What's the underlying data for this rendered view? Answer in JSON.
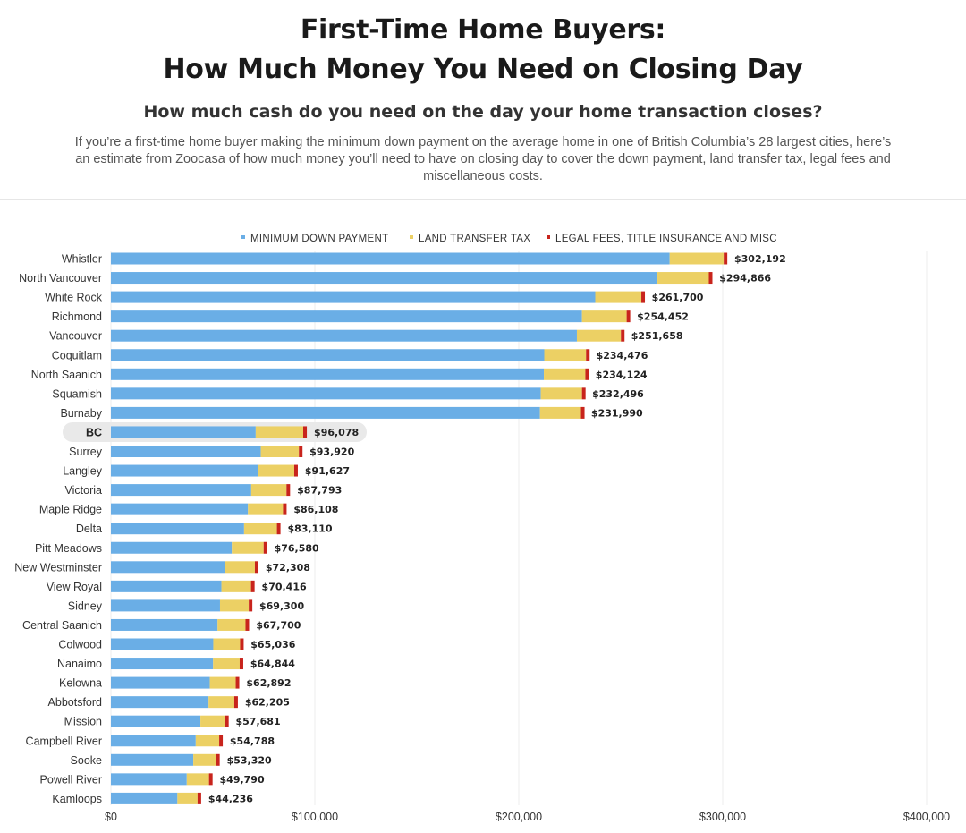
{
  "header": {
    "title_line1": "First-Time Home Buyers:",
    "title_line2": "How Much Money You Need on Closing Day",
    "subtitle": "How much cash do you need on the day your home transaction closes?",
    "description": "If you’re a first-time home buyer making the minimum down payment on the average home in one of British Columbia’s 28 largest cities, here’s an estimate from Zoocasa of how much money you’ll need to have on closing day to cover the down payment, land transfer tax, legal fees and miscellaneous costs."
  },
  "colors": {
    "down_payment": "#6aaee6",
    "land_transfer_tax": "#ecd064",
    "legal_fees": "#c8241c",
    "highlight_bg": "#e9e9e9"
  },
  "chart_data": {
    "type": "bar",
    "orientation": "horizontal",
    "stacked": true,
    "legend_position": "top",
    "grid": true,
    "xlim": [
      0,
      400000
    ],
    "x_ticks": [
      {
        "value": 0,
        "label": "$0"
      },
      {
        "value": 100000,
        "label": "$100,000"
      },
      {
        "value": 200000,
        "label": "$200,000"
      },
      {
        "value": 300000,
        "label": "$300,000"
      },
      {
        "value": 400000,
        "label": "$400,000"
      }
    ],
    "legend": [
      {
        "key": "down_payment",
        "label": "MINIMUM DOWN PAYMENT"
      },
      {
        "key": "land_transfer_tax",
        "label": "LAND TRANSFER TAX"
      },
      {
        "key": "legal_fees",
        "label": "LEGAL FEES, TITLE INSURANCE AND MISC"
      }
    ],
    "highlight_category": "BC",
    "rows": [
      {
        "category": "Whistler",
        "down_payment": 274000,
        "land_transfer_tax": 26500,
        "legal_fees": 1692,
        "total_label": "$302,192"
      },
      {
        "category": "North Vancouver",
        "down_payment": 268000,
        "land_transfer_tax": 25200,
        "legal_fees": 1666,
        "total_label": "$294,866"
      },
      {
        "category": "White Rock",
        "down_payment": 237500,
        "land_transfer_tax": 22600,
        "legal_fees": 1600,
        "total_label": "$261,700"
      },
      {
        "category": "Richmond",
        "down_payment": 231000,
        "land_transfer_tax": 21900,
        "legal_fees": 1552,
        "total_label": "$254,452"
      },
      {
        "category": "Vancouver",
        "down_payment": 228500,
        "land_transfer_tax": 21600,
        "legal_fees": 1558,
        "total_label": "$251,658"
      },
      {
        "category": "Coquitlam",
        "down_payment": 212500,
        "land_transfer_tax": 20500,
        "legal_fees": 1476,
        "total_label": "$234,476"
      },
      {
        "category": "North Saanich",
        "down_payment": 212300,
        "land_transfer_tax": 20350,
        "legal_fees": 1474,
        "total_label": "$234,124"
      },
      {
        "category": "Squamish",
        "down_payment": 210800,
        "land_transfer_tax": 20200,
        "legal_fees": 1496,
        "total_label": "$232,496"
      },
      {
        "category": "Burnaby",
        "down_payment": 210400,
        "land_transfer_tax": 20100,
        "legal_fees": 1490,
        "total_label": "$231,990"
      },
      {
        "category": "BC",
        "down_payment": 71000,
        "land_transfer_tax": 23300,
        "legal_fees": 1778,
        "total_label": "$96,078"
      },
      {
        "category": "Surrey",
        "down_payment": 73500,
        "land_transfer_tax": 18700,
        "legal_fees": 1720,
        "total_label": "$93,920"
      },
      {
        "category": "Langley",
        "down_payment": 72000,
        "land_transfer_tax": 17900,
        "legal_fees": 1727,
        "total_label": "$91,627"
      },
      {
        "category": "Victoria",
        "down_payment": 68800,
        "land_transfer_tax": 17300,
        "legal_fees": 1693,
        "total_label": "$87,793"
      },
      {
        "category": "Maple Ridge",
        "down_payment": 67200,
        "land_transfer_tax": 17200,
        "legal_fees": 1708,
        "total_label": "$86,108"
      },
      {
        "category": "Delta",
        "down_payment": 65300,
        "land_transfer_tax": 16100,
        "legal_fees": 1710,
        "total_label": "$83,110"
      },
      {
        "category": "Pitt Meadows",
        "down_payment": 59300,
        "land_transfer_tax": 15600,
        "legal_fees": 1680,
        "total_label": "$76,580"
      },
      {
        "category": "New Westminster",
        "down_payment": 55900,
        "land_transfer_tax": 14700,
        "legal_fees": 1708,
        "total_label": "$72,308"
      },
      {
        "category": "View Royal",
        "down_payment": 54200,
        "land_transfer_tax": 14500,
        "legal_fees": 1716,
        "total_label": "$70,416"
      },
      {
        "category": "Sidney",
        "down_payment": 53500,
        "land_transfer_tax": 14100,
        "legal_fees": 1700,
        "total_label": "$69,300"
      },
      {
        "category": "Central Saanich",
        "down_payment": 52300,
        "land_transfer_tax": 13700,
        "legal_fees": 1700,
        "total_label": "$67,700"
      },
      {
        "category": "Colwood",
        "down_payment": 50200,
        "land_transfer_tax": 13150,
        "legal_fees": 1686,
        "total_label": "$65,036"
      },
      {
        "category": "Nanaimo",
        "down_payment": 50100,
        "land_transfer_tax": 13050,
        "legal_fees": 1694,
        "total_label": "$64,844"
      },
      {
        "category": "Kelowna",
        "down_payment": 48500,
        "land_transfer_tax": 12700,
        "legal_fees": 1692,
        "total_label": "$62,892"
      },
      {
        "category": "Abbotsford",
        "down_payment": 47900,
        "land_transfer_tax": 12600,
        "legal_fees": 1705,
        "total_label": "$62,205"
      },
      {
        "category": "Mission",
        "down_payment": 43900,
        "land_transfer_tax": 12100,
        "legal_fees": 1681,
        "total_label": "$57,681"
      },
      {
        "category": "Campbell River",
        "down_payment": 41600,
        "land_transfer_tax": 11500,
        "legal_fees": 1688,
        "total_label": "$54,788"
      },
      {
        "category": "Sooke",
        "down_payment": 40400,
        "land_transfer_tax": 11200,
        "legal_fees": 1720,
        "total_label": "$53,320"
      },
      {
        "category": "Powell River",
        "down_payment": 37200,
        "land_transfer_tax": 10900,
        "legal_fees": 1690,
        "total_label": "$49,790"
      },
      {
        "category": "Kamloops",
        "down_payment": 32600,
        "land_transfer_tax": 9900,
        "legal_fees": 1736,
        "total_label": "$44,236"
      }
    ]
  }
}
